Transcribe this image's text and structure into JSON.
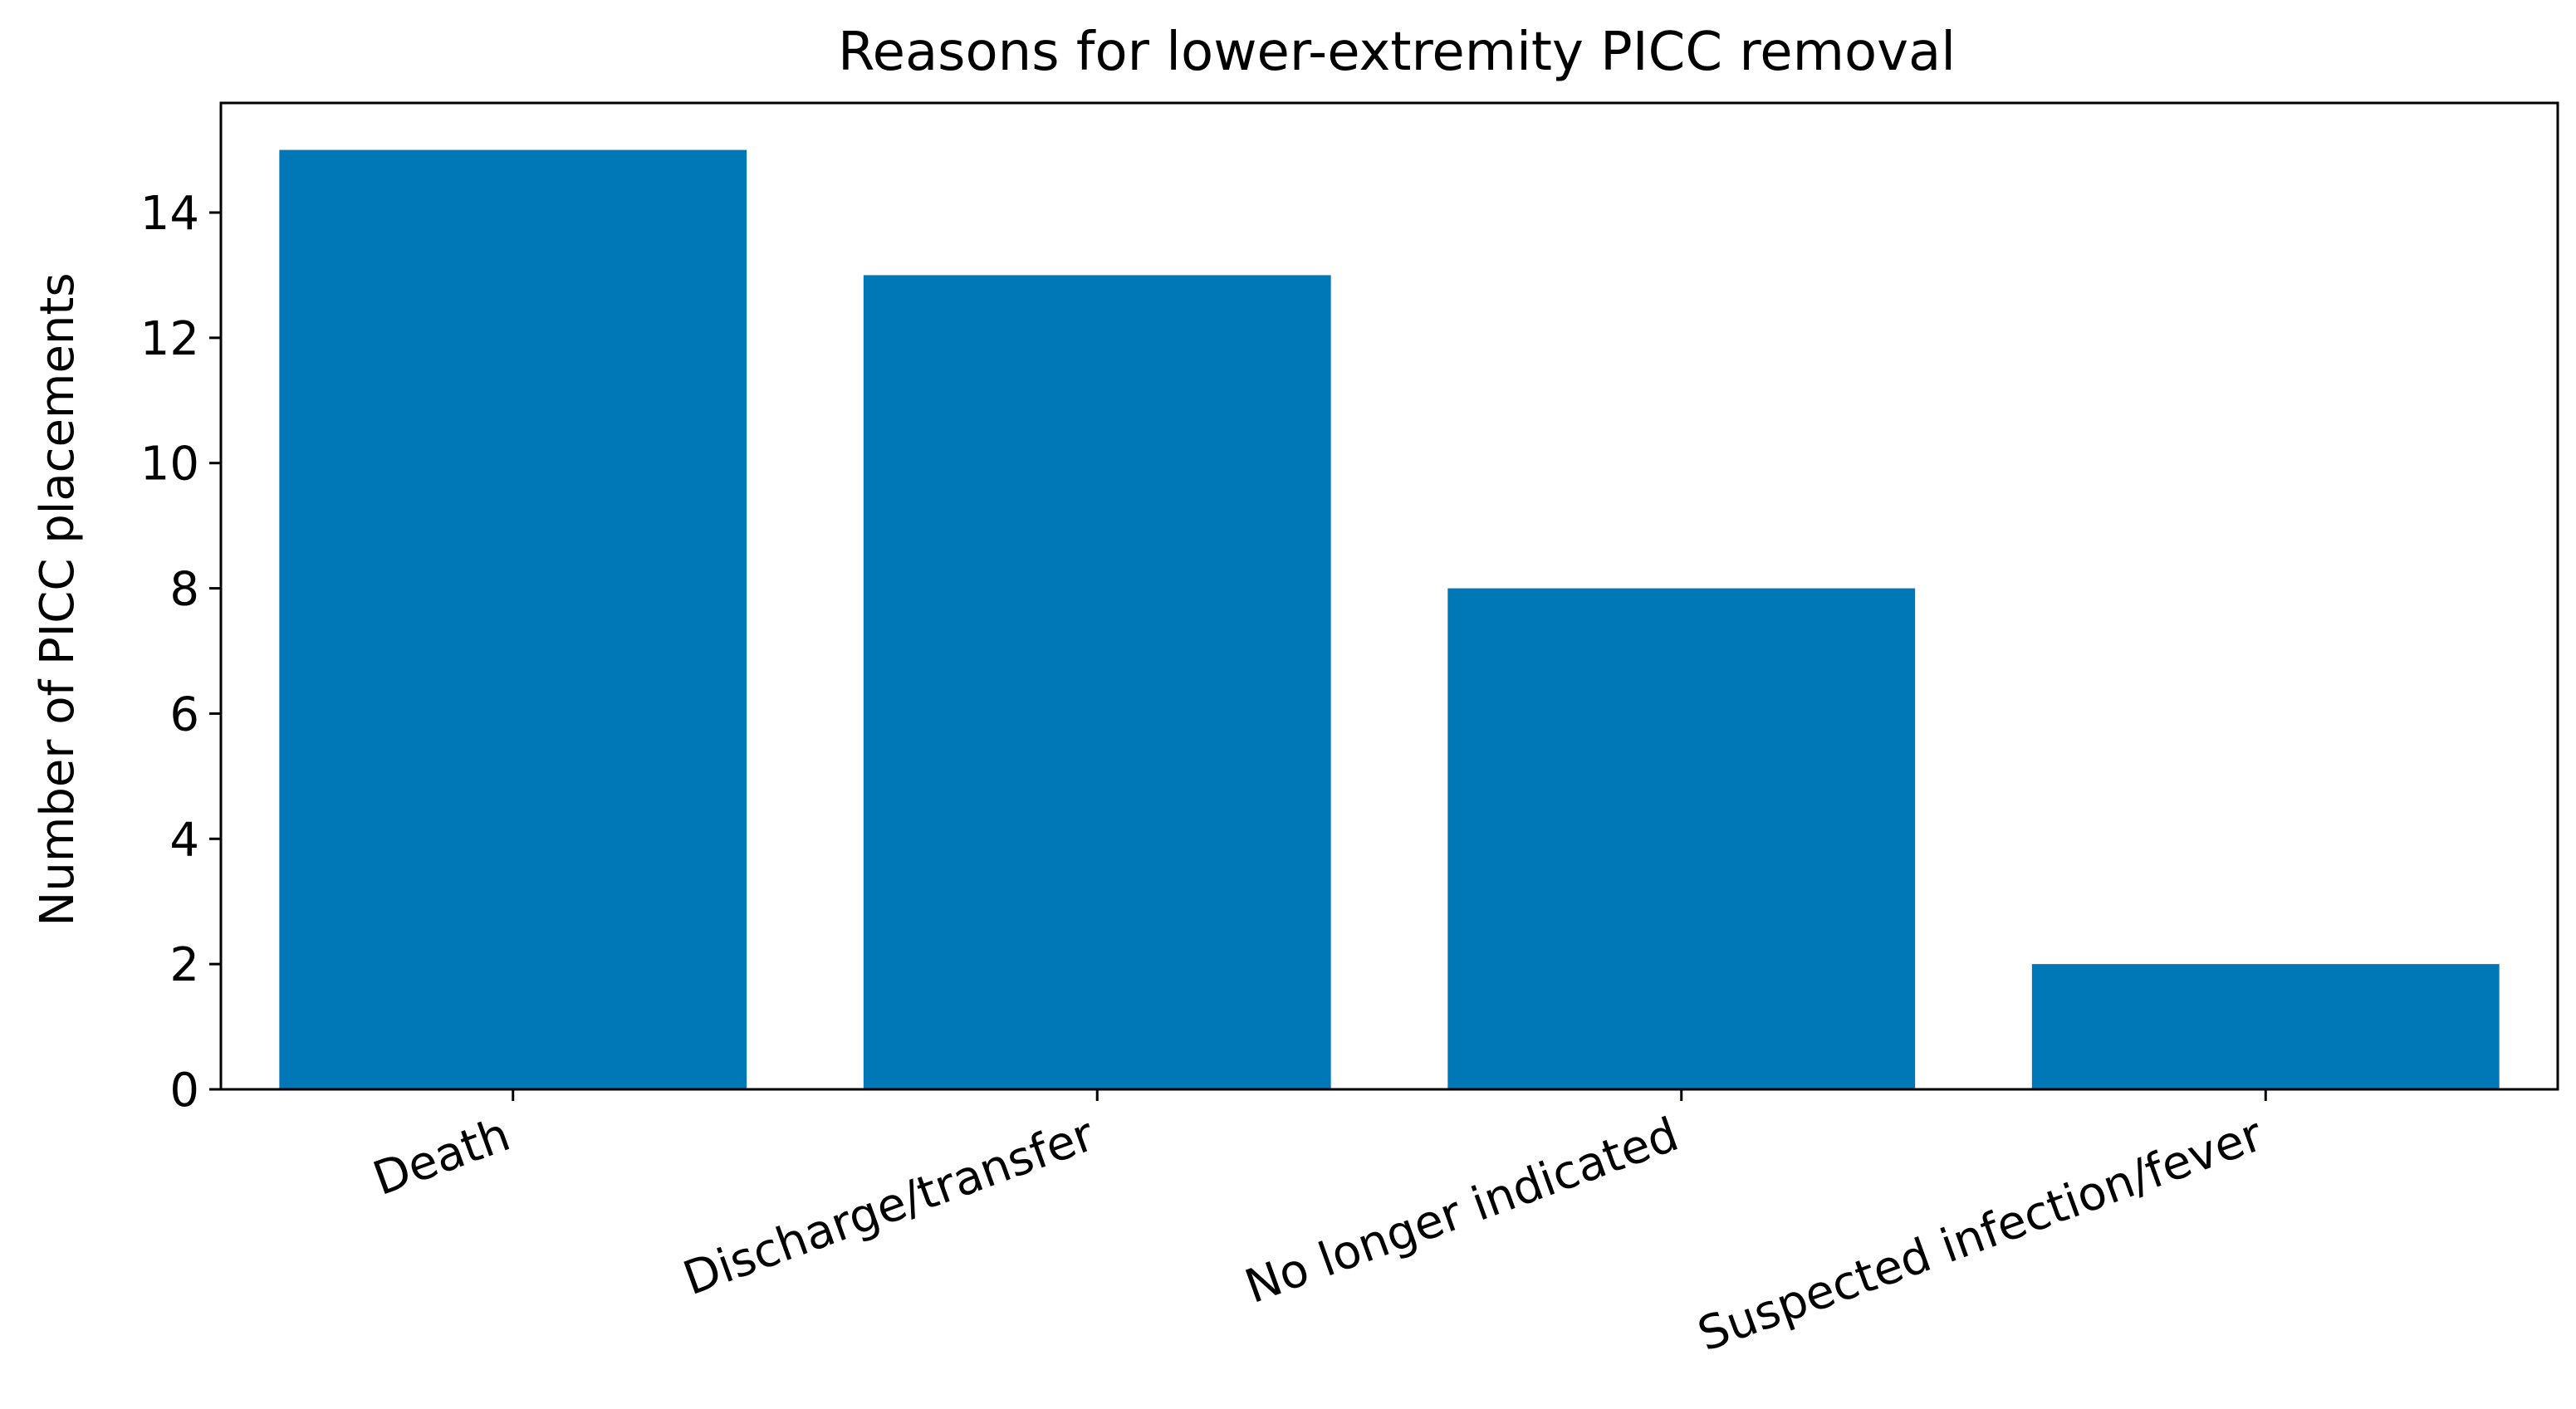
{
  "chart_data": {
    "type": "bar",
    "title": "Reasons for lower-extremity PICC removal",
    "xlabel": "",
    "ylabel": "Number of PICC placements",
    "categories": [
      "Death",
      "Discharge/transfer",
      "No longer indicated",
      "Suspected infection/fever"
    ],
    "values": [
      15,
      13,
      8,
      2
    ],
    "ylim": [
      0,
      15.75
    ],
    "yticks": [
      0,
      2,
      4,
      6,
      8,
      10,
      12,
      14
    ],
    "grid": false,
    "legend": "none",
    "bar_color": "#0077B6"
  }
}
